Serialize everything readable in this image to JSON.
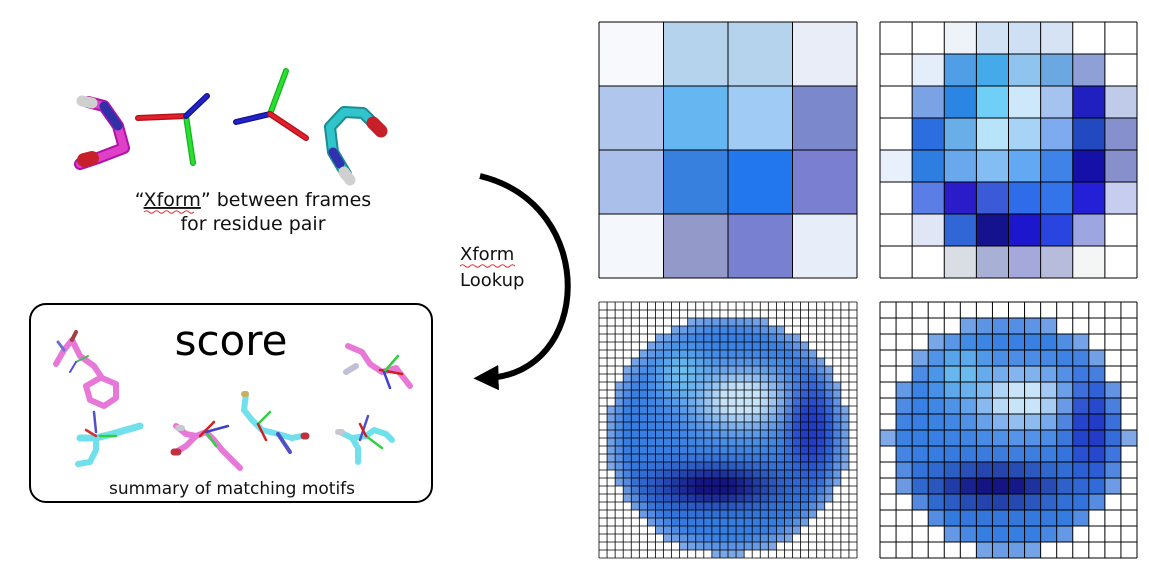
{
  "xform_caption": {
    "open_quote": "“",
    "word": "Xform",
    "close_rest": "” between frames",
    "line2": "for residue pair"
  },
  "arrow_label": {
    "word": "Xform",
    "line2": "Lookup"
  },
  "score_box": {
    "title": "score",
    "caption": "summary of matching motifs"
  },
  "colors": {
    "magenta": "#e040c8",
    "pink": "#e878d8",
    "cyan": "#30c4cc",
    "light_cyan": "#70e0ec",
    "red": "#d8202a",
    "green": "#22d030",
    "blue": "#2020c0",
    "white_atom": "#dddddd"
  },
  "grids": [
    {
      "id": "grid-4",
      "n": 4,
      "cells": [
        "#f7f9fc",
        "#b6d3ee",
        "#b6d3ee",
        "#e9edf8",
        "#b0c6ec",
        "#66b6f2",
        "#a0cbf5",
        "#7b88cb",
        "#aabfea",
        "#3880de",
        "#2276ee",
        "#7a7fd2",
        "#f4f8fd",
        "#9399c8",
        "#7880d2",
        "#e8eef9"
      ]
    },
    {
      "id": "grid-8",
      "n": 8,
      "cells": [
        "#ffffff",
        "#ffffff",
        "#eef3fa",
        "#d2e2f5",
        "#cfe0f4",
        "#d5e3f4",
        "#ffffff",
        "#ffffff",
        "#ffffff",
        "#e4eefa",
        "#4f9ee6",
        "#44aaea",
        "#8ec4ee",
        "#6ba8e2",
        "#8ea0d6",
        "#ffffff",
        "#ffffff",
        "#7ca2e6",
        "#2a86e2",
        "#70cff6",
        "#cde8fb",
        "#a5c3ee",
        "#2020c0",
        "#c0cbea",
        "#ffffff",
        "#2c6ee0",
        "#6aaee9",
        "#b7e4f9",
        "#a6d3f6",
        "#7eaaf0",
        "#2249c0",
        "#8590cc",
        "#e8f0fb",
        "#2e7ee2",
        "#6aa8ee",
        "#82bdf4",
        "#62a8f2",
        "#3f82e8",
        "#1410a8",
        "#8890cc",
        "#ffffff",
        "#5a7ee6",
        "#2a1cc8",
        "#3a5ad8",
        "#2e6cea",
        "#3474ea",
        "#2420d8",
        "#c6cdee",
        "#ffffff",
        "#e0e6f6",
        "#3066d6",
        "#15128e",
        "#1c16cc",
        "#2a44e0",
        "#9ea6e2",
        "#ffffff",
        "#ffffff",
        "#ffffff",
        "#d9dde4",
        "#a8b0d6",
        "#a4a8da",
        "#b8bcdc",
        "#f4f6f6",
        "#ffffff"
      ]
    },
    {
      "id": "grid-32",
      "n": 32
    },
    {
      "id": "grid-16",
      "n": 16
    }
  ]
}
